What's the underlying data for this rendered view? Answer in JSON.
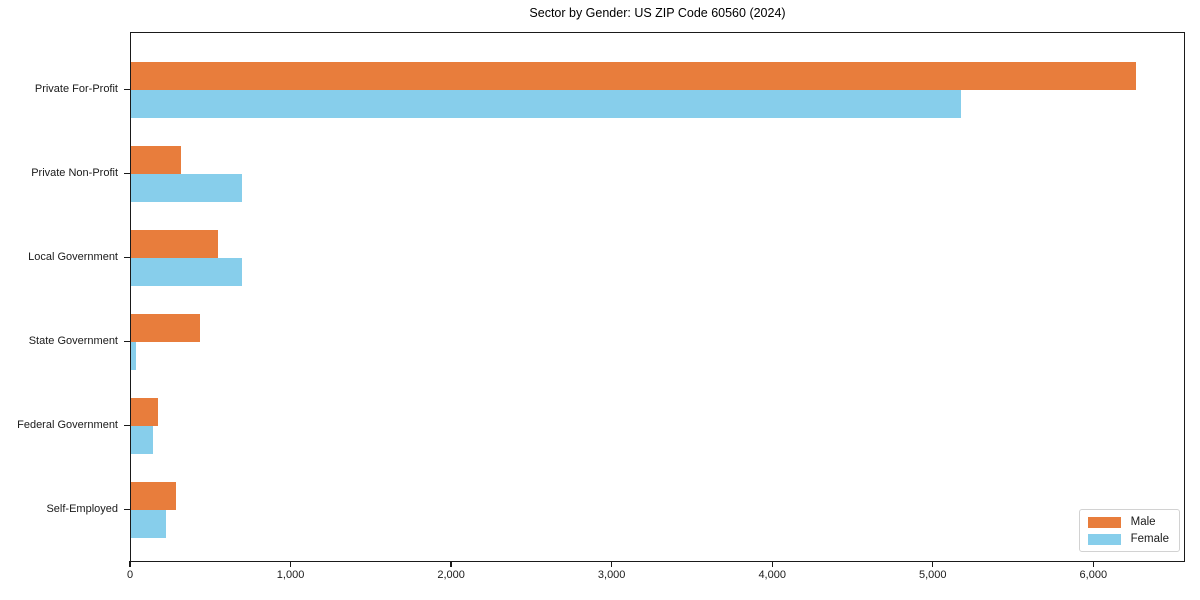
{
  "title": "Sector by Gender: US ZIP Code 60560 (2024)",
  "chart_data": {
    "type": "bar",
    "orientation": "horizontal",
    "title": "Sector by Gender: US ZIP Code 60560 (2024)",
    "xlabel": "",
    "ylabel": "",
    "categories": [
      "Private For-Profit",
      "Private Non-Profit",
      "Local Government",
      "State Government",
      "Federal Government",
      "Self-Employed"
    ],
    "series": [
      {
        "name": "Male",
        "color": "#e87d3c",
        "values": [
          6260,
          310,
          540,
          430,
          170,
          280
        ]
      },
      {
        "name": "Female",
        "color": "#87ceeb",
        "values": [
          5170,
          690,
          690,
          30,
          140,
          215
        ]
      }
    ],
    "xlim": [
      0,
      6571
    ],
    "x_ticks": [
      0,
      1000,
      2000,
      3000,
      4000,
      5000,
      6000
    ],
    "x_tick_labels": [
      "0",
      "1,000",
      "2,000",
      "3,000",
      "4,000",
      "5,000",
      "6,000"
    ],
    "grid": false,
    "legend_position": "lower right"
  },
  "legend": {
    "items": [
      {
        "label": "Male",
        "color": "#e87d3c"
      },
      {
        "label": "Female",
        "color": "#87ceeb"
      }
    ]
  },
  "colors": {
    "male": "#e87d3c",
    "female": "#87ceeb",
    "spine": "#1a1a1a",
    "background": "#ffffff"
  }
}
